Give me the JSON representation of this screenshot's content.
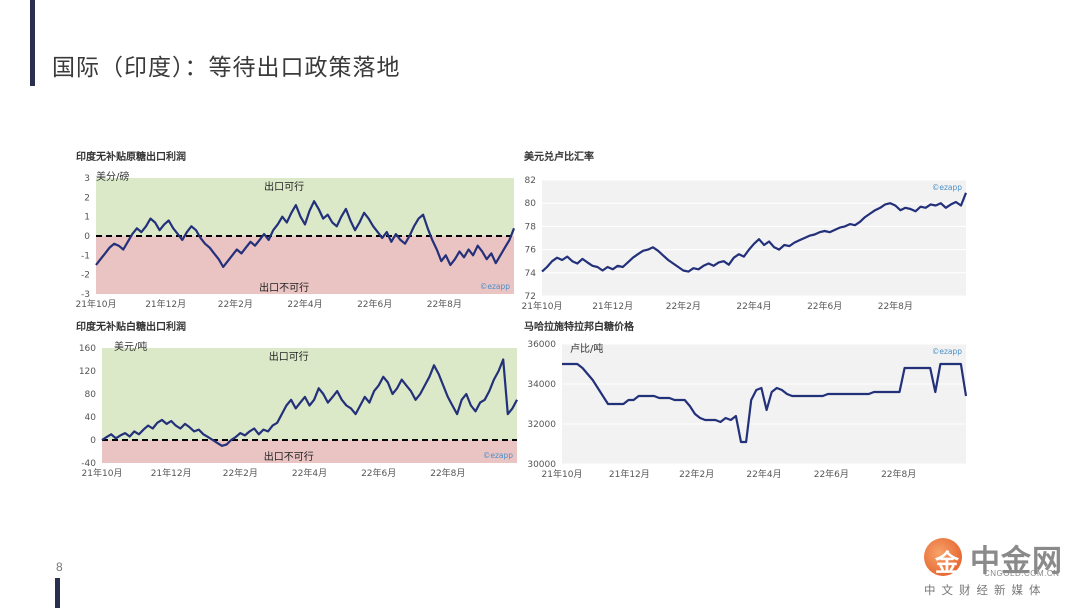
{
  "page": {
    "title": "国际（印度）：等待出口政策落地",
    "page_number": "8"
  },
  "brand": {
    "chart_mark": "©ezapp",
    "logo_cn": "中金网",
    "logo_en": "CNGOLD.COM.CN",
    "logo_sub": "中文财经新媒体",
    "logo_glyph": "金"
  },
  "colors": {
    "line": "#23307a",
    "positive_zone": "#dbe9c9",
    "negative_zone": "#eac3c3",
    "plot_bg": "#f2f2f2",
    "grid": "#ffffff"
  },
  "chart_data": [
    {
      "id": "raw",
      "type": "line",
      "title": "印度无补贴原糖出口利润",
      "ylabel": "美分/磅",
      "ylim": [
        -3,
        3
      ],
      "yticks": [
        3,
        2,
        1,
        0,
        -1,
        -2,
        -3
      ],
      "x_labels": [
        "21年10月",
        "21年12月",
        "22年2月",
        "22年4月",
        "22年6月",
        "22年8月"
      ],
      "x_start": "2021-10",
      "x_end": "2022-10",
      "zones": true,
      "zone_pos_label": "出口可行",
      "zone_neg_label": "出口不可行",
      "values": [
        -1.5,
        -1.2,
        -0.9,
        -0.6,
        -0.4,
        -0.5,
        -0.7,
        -0.3,
        0.1,
        0.4,
        0.2,
        0.5,
        0.9,
        0.7,
        0.3,
        0.6,
        0.8,
        0.4,
        0.1,
        -0.2,
        0.2,
        0.5,
        0.3,
        -0.1,
        -0.4,
        -0.6,
        -0.9,
        -1.2,
        -1.6,
        -1.3,
        -1.0,
        -0.7,
        -0.9,
        -0.6,
        -0.3,
        -0.5,
        -0.2,
        0.1,
        -0.2,
        0.3,
        0.6,
        1.0,
        0.7,
        1.2,
        1.6,
        1.0,
        0.6,
        1.3,
        1.8,
        1.4,
        0.9,
        1.1,
        0.7,
        0.5,
        1.0,
        1.4,
        0.8,
        0.3,
        0.7,
        1.2,
        0.9,
        0.5,
        0.2,
        -0.1,
        0.2,
        -0.3,
        0.1,
        -0.2,
        -0.4,
        0.0,
        0.5,
        0.9,
        1.1,
        0.4,
        -0.2,
        -0.7,
        -1.3,
        -1.0,
        -1.5,
        -1.2,
        -0.8,
        -1.1,
        -0.7,
        -1.0,
        -0.5,
        -0.8,
        -1.2,
        -0.9,
        -1.4,
        -1.0,
        -0.6,
        -0.2,
        0.4
      ]
    },
    {
      "id": "fx",
      "type": "line",
      "title": "美元兑卢比汇率",
      "ylabel": "",
      "ylim": [
        72,
        82
      ],
      "yticks": [
        82,
        80,
        78,
        76,
        74,
        72
      ],
      "x_labels": [
        "21年10月",
        "21年12月",
        "22年2月",
        "22年4月",
        "22年6月",
        "22年8月"
      ],
      "x_start": "2021-10",
      "x_end": "2022-10",
      "zones": false,
      "values": [
        74.1,
        74.5,
        75.0,
        75.3,
        75.1,
        75.4,
        75.0,
        74.8,
        75.2,
        74.9,
        74.6,
        74.5,
        74.2,
        74.5,
        74.3,
        74.6,
        74.5,
        74.9,
        75.3,
        75.6,
        75.9,
        76.0,
        76.2,
        75.9,
        75.5,
        75.1,
        74.8,
        74.5,
        74.2,
        74.1,
        74.4,
        74.3,
        74.6,
        74.8,
        74.6,
        74.9,
        75.0,
        74.7,
        75.3,
        75.6,
        75.4,
        76.0,
        76.5,
        76.9,
        76.4,
        76.7,
        76.2,
        76.0,
        76.4,
        76.3,
        76.6,
        76.8,
        77.0,
        77.2,
        77.3,
        77.5,
        77.6,
        77.5,
        77.7,
        77.9,
        78.0,
        78.2,
        78.1,
        78.4,
        78.8,
        79.1,
        79.4,
        79.6,
        79.9,
        80.0,
        79.8,
        79.4,
        79.6,
        79.5,
        79.3,
        79.7,
        79.6,
        79.9,
        79.8,
        80.0,
        79.6,
        79.9,
        80.1,
        79.8,
        80.9
      ]
    },
    {
      "id": "white",
      "type": "line",
      "title": "印度无补贴白糖出口利润",
      "ylabel": "美元/吨",
      "ylim": [
        -40,
        160
      ],
      "yticks": [
        160,
        120,
        80,
        40,
        0,
        -40
      ],
      "x_labels": [
        "21年10月",
        "21年12月",
        "22年2月",
        "22年4月",
        "22年6月",
        "22年8月"
      ],
      "x_start": "2021-10",
      "x_end": "2022-10",
      "zones": true,
      "zone_pos_label": "出口可行",
      "zone_neg_label": "出口不可行",
      "values": [
        0,
        5,
        10,
        3,
        8,
        12,
        6,
        15,
        10,
        18,
        25,
        20,
        30,
        35,
        28,
        33,
        25,
        20,
        28,
        22,
        15,
        18,
        10,
        5,
        0,
        -5,
        -10,
        -8,
        0,
        5,
        12,
        8,
        15,
        20,
        10,
        18,
        15,
        25,
        30,
        45,
        60,
        70,
        55,
        65,
        75,
        60,
        70,
        90,
        80,
        65,
        75,
        85,
        70,
        60,
        55,
        45,
        60,
        75,
        65,
        85,
        95,
        110,
        100,
        80,
        90,
        105,
        95,
        85,
        70,
        80,
        95,
        110,
        130,
        115,
        95,
        75,
        60,
        45,
        70,
        80,
        60,
        50,
        65,
        70,
        85,
        105,
        120,
        140,
        45,
        55,
        70
      ]
    },
    {
      "id": "malay",
      "type": "line",
      "title": "马哈拉施特拉邦白糖价格",
      "ylabel": "卢比/吨",
      "ylim": [
        30000,
        36000
      ],
      "yticks": [
        36000,
        34000,
        32000,
        30000
      ],
      "x_labels": [
        "21年10月",
        "21年12月",
        "22年2月",
        "22年4月",
        "22年6月",
        "22年8月"
      ],
      "x_start": "2021-10",
      "x_end": "2022-10",
      "zones": false,
      "values": [
        35000,
        35000,
        35000,
        35000,
        34800,
        34500,
        34200,
        33800,
        33400,
        33000,
        33000,
        33000,
        33000,
        33200,
        33200,
        33400,
        33400,
        33400,
        33400,
        33300,
        33300,
        33300,
        33200,
        33200,
        33200,
        32900,
        32500,
        32300,
        32200,
        32200,
        32200,
        32100,
        32300,
        32200,
        32400,
        31100,
        31100,
        33200,
        33700,
        33800,
        32700,
        33600,
        33800,
        33700,
        33500,
        33400,
        33400,
        33400,
        33400,
        33400,
        33400,
        33400,
        33500,
        33500,
        33500,
        33500,
        33500,
        33500,
        33500,
        33500,
        33500,
        33600,
        33600,
        33600,
        33600,
        33600,
        33600,
        34800,
        34800,
        34800,
        34800,
        34800,
        34800,
        33600,
        35000,
        35000,
        35000,
        35000,
        35000,
        33400
      ]
    }
  ]
}
